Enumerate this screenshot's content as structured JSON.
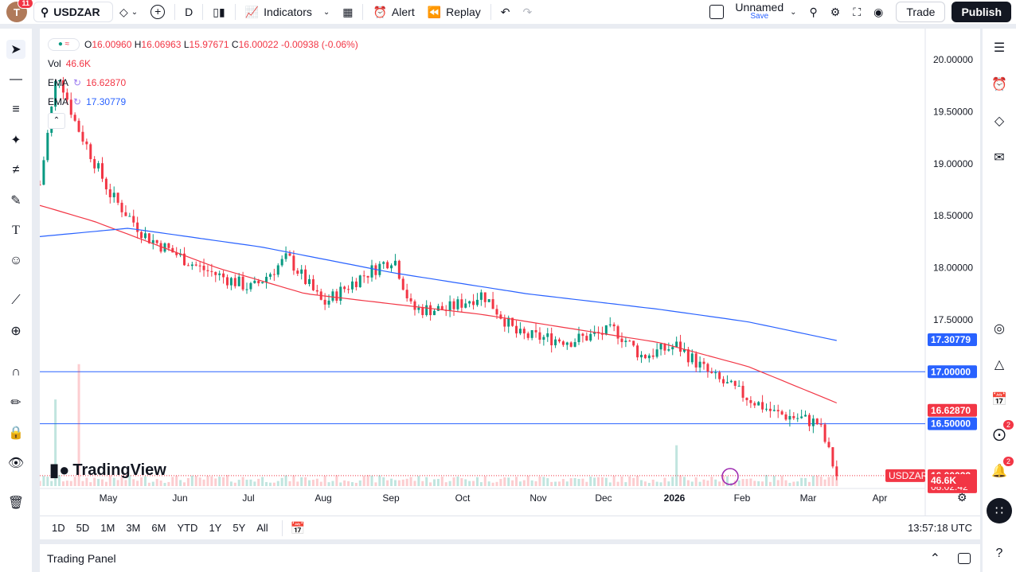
{
  "topbar": {
    "avatar_letter": "T",
    "avatar_badge": "11",
    "symbol": "USDZAR",
    "interval": "D",
    "indicators_label": "Indicators",
    "alert_label": "Alert",
    "replay_label": "Replay",
    "layout_name": "Unnamed",
    "layout_save": "Save",
    "trade_label": "Trade",
    "publish_label": "Publish"
  },
  "legend": {
    "open_label": "O",
    "open": "16.00960",
    "high_label": "H",
    "high": "16.06963",
    "low_label": "L",
    "low": "15.97671",
    "close_label": "C",
    "close": "16.00022",
    "change": "-0.00938 (-0.06%)",
    "vol_label": "Vol",
    "vol": "46.6K",
    "ema1_label": "EMA",
    "ema1": "16.62870",
    "ema2_label": "EMA",
    "ema2": "17.30779"
  },
  "price_axis": {
    "ticks": [
      "20.00000",
      "19.50000",
      "19.00000",
      "18.50000",
      "18.00000",
      "17.50000"
    ],
    "tags": {
      "ema_slow": "17.30779",
      "level_high": "17.00000",
      "ema_fast": "16.62870",
      "level_low": "16.50000",
      "symbol_tag": "USDZAR",
      "last_price": "16.00022",
      "countdown": "08:02:42",
      "volume": "46.6K"
    }
  },
  "time_axis": [
    "May",
    "Jun",
    "Jul",
    "Aug",
    "Sep",
    "Oct",
    "Nov",
    "Dec",
    "2026",
    "Feb",
    "Mar",
    "Apr"
  ],
  "range_buttons": [
    "1D",
    "5D",
    "1M",
    "3M",
    "6M",
    "YTD",
    "1Y",
    "5Y",
    "All"
  ],
  "clock": "13:57:18 UTC",
  "watermark": "TradingView",
  "trading_panel_label": "Trading Panel",
  "right_badges": [
    "2",
    "2"
  ],
  "colors": {
    "up": "#089981",
    "down": "#f23645",
    "ema_fast": "#f23645",
    "ema_slow": "#2962ff",
    "hline": "#2962ff"
  },
  "chart_data": {
    "type": "candlestick",
    "symbol": "USDZAR",
    "interval": "1D",
    "ylim": [
      15.9,
      20.3
    ],
    "x_range": [
      "2025-04-07",
      "2026-04-30"
    ],
    "horizontal_levels": [
      17.0,
      16.5
    ],
    "last_price": 16.00022,
    "ema_fast_last": 16.6287,
    "ema_slow_last": 17.30779,
    "ema_fast_path": [
      [
        0,
        18.6
      ],
      [
        0.06,
        18.45
      ],
      [
        0.2,
        18.0
      ],
      [
        0.3,
        17.75
      ],
      [
        0.5,
        17.55
      ],
      [
        0.7,
        17.28
      ],
      [
        0.8,
        17.05
      ],
      [
        0.9,
        16.7
      ]
    ],
    "ema_slow_path": [
      [
        0,
        18.3
      ],
      [
        0.1,
        18.38
      ],
      [
        0.25,
        18.2
      ],
      [
        0.4,
        17.95
      ],
      [
        0.55,
        17.75
      ],
      [
        0.7,
        17.6
      ],
      [
        0.8,
        17.48
      ],
      [
        0.9,
        17.3
      ]
    ],
    "close_path": [
      [
        0,
        18.8
      ],
      [
        0.02,
        19.9
      ],
      [
        0.04,
        19.4
      ],
      [
        0.08,
        18.7
      ],
      [
        0.12,
        18.3
      ],
      [
        0.18,
        18.0
      ],
      [
        0.24,
        17.8
      ],
      [
        0.28,
        18.1
      ],
      [
        0.32,
        17.65
      ],
      [
        0.36,
        17.9
      ],
      [
        0.4,
        18.1
      ],
      [
        0.42,
        17.6
      ],
      [
        0.46,
        17.6
      ],
      [
        0.5,
        17.75
      ],
      [
        0.54,
        17.35
      ],
      [
        0.6,
        17.3
      ],
      [
        0.65,
        17.4
      ],
      [
        0.68,
        17.15
      ],
      [
        0.72,
        17.25
      ],
      [
        0.76,
        16.95
      ],
      [
        0.8,
        16.75
      ],
      [
        0.83,
        16.6
      ],
      [
        0.86,
        16.55
      ],
      [
        0.88,
        16.5
      ],
      [
        0.9,
        16.0
      ]
    ]
  }
}
